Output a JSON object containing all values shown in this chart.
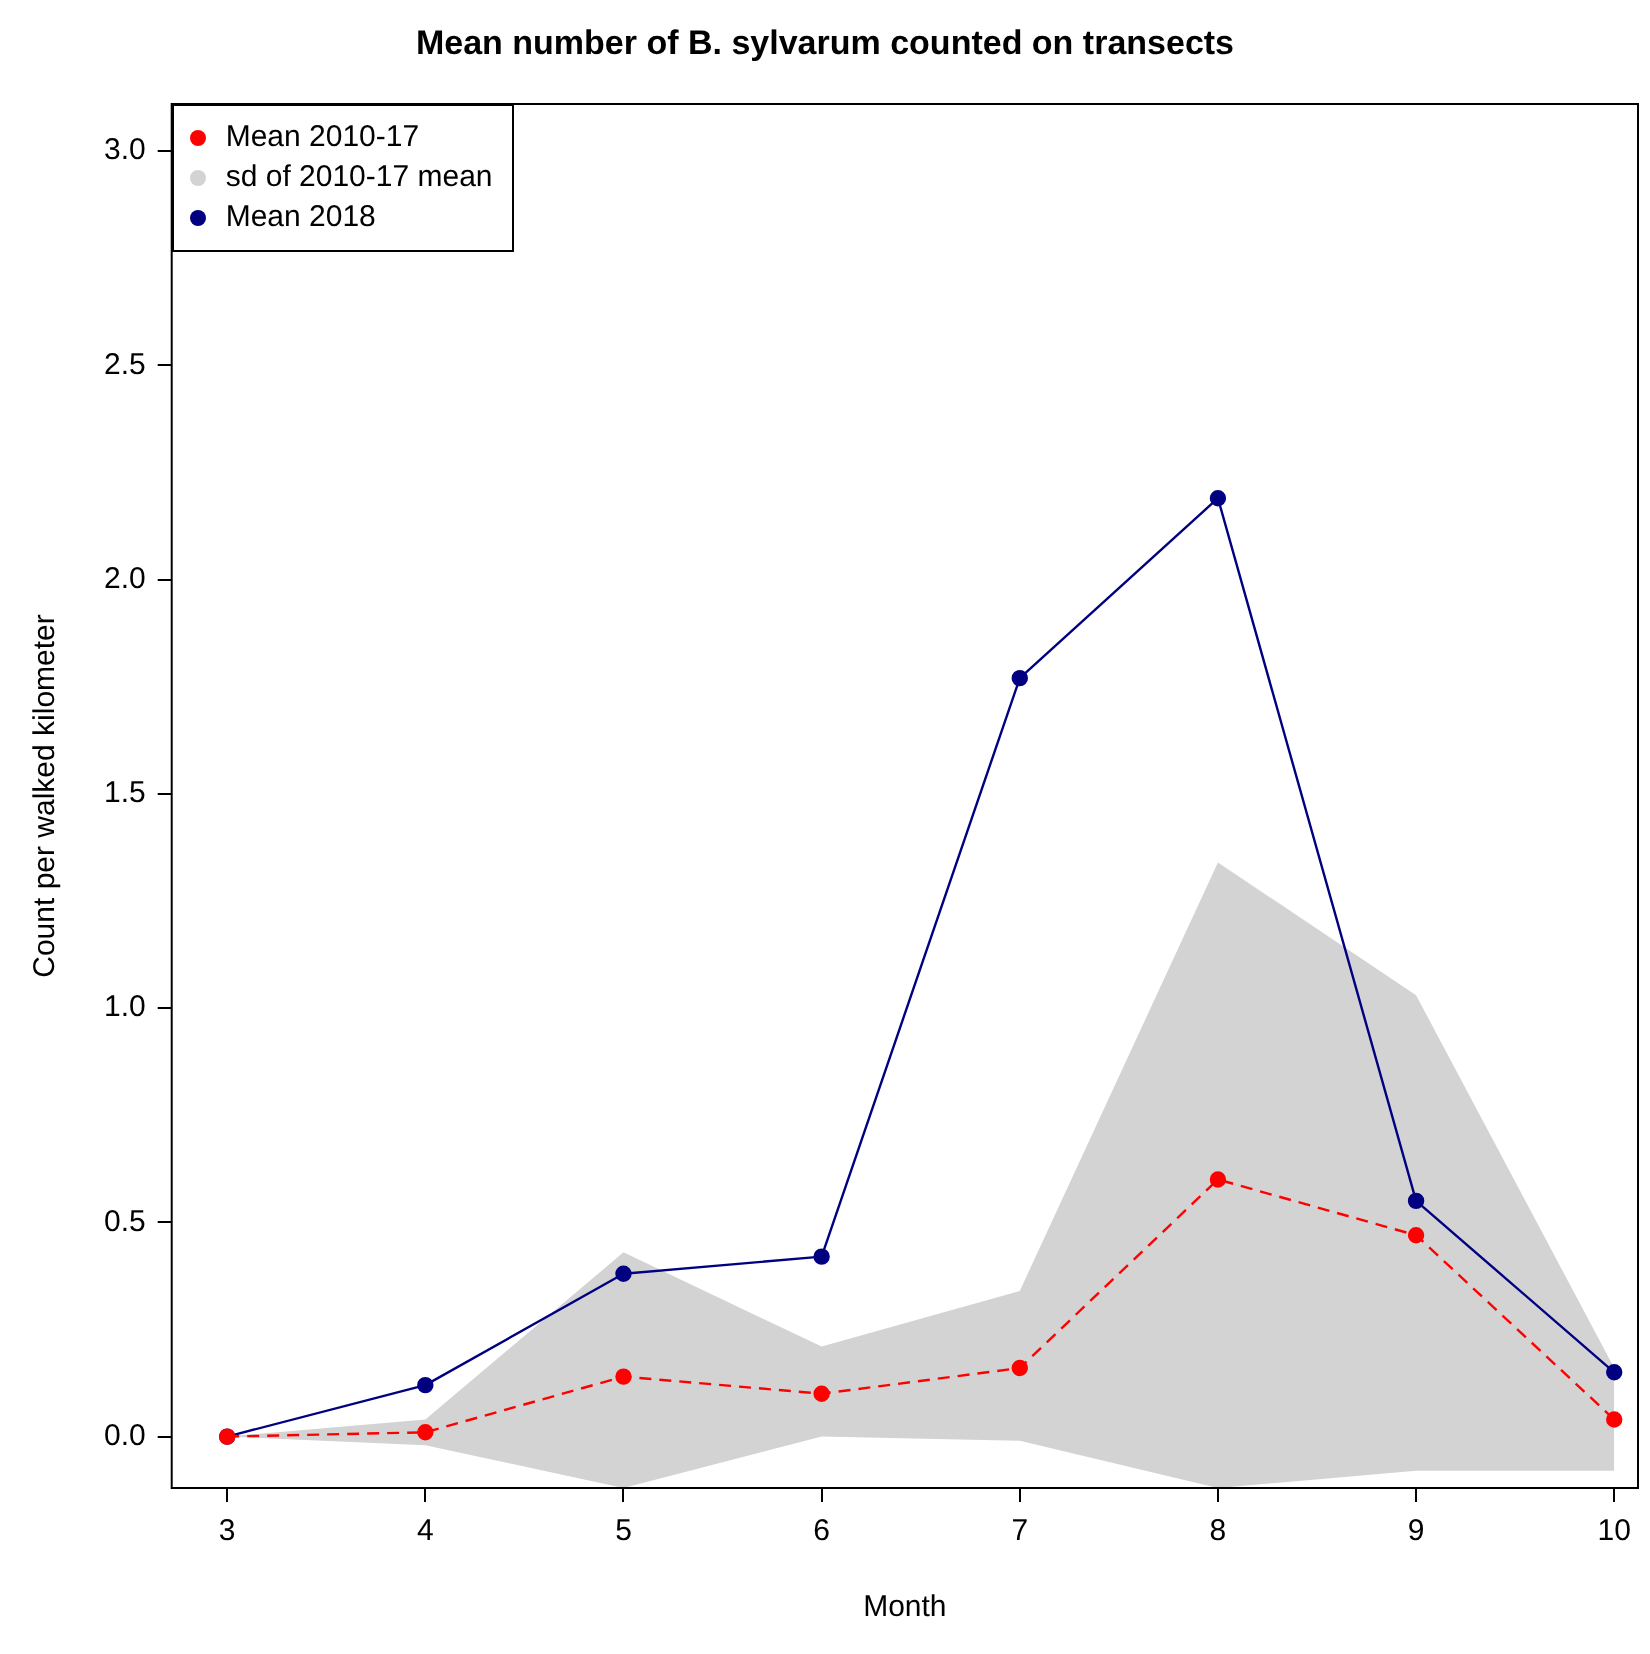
{
  "chart_data": {
    "type": "line",
    "title": "Mean number of B. sylvarum counted on transects",
    "xlabel": "Month",
    "ylabel": "Count per walked kilometer",
    "x": [
      3,
      4,
      5,
      6,
      7,
      8,
      9,
      10
    ],
    "xlim": [
      2.72,
      10.12
    ],
    "xticks": [
      3,
      4,
      5,
      6,
      7,
      8,
      9,
      10
    ],
    "ylim": [
      -0.12,
      3.11
    ],
    "yticks": [
      {
        "value": 0,
        "label": "0.0"
      },
      0.5,
      {
        "value": 1,
        "label": "1.0"
      },
      1.5,
      {
        "value": 2,
        "label": "2.0"
      },
      2.5,
      {
        "value": 3,
        "label": "3.0"
      }
    ],
    "grid": false,
    "legend": "top left",
    "marker": "circle",
    "series": [
      {
        "name": "Mean 2010-17",
        "color": "#ff0000",
        "line_style": "dashed",
        "values": [
          0,
          0.01,
          0.14,
          0.1,
          0.16,
          0.6,
          0.47,
          0.04
        ]
      },
      {
        "name": "sd of 2010-17 mean",
        "type": "line",
        "color": "#d3d3d3",
        "values": [
          null,
          null,
          null,
          null,
          null,
          null,
          null,
          null
        ],
        "upper": [
          0,
          0.04,
          0.43,
          0.21,
          0.34,
          1.34,
          1.03,
          0.16
        ],
        "lower": [
          0,
          -0.02,
          -0.12,
          0,
          -0.01,
          -0.12,
          -0.08,
          -0.08
        ]
      },
      {
        "name": "Mean 2018",
        "color": "#000080",
        "line_style": "solid",
        "values": [
          0,
          0.12,
          0.38,
          0.42,
          1.77,
          2.19,
          0.55,
          0.15
        ]
      }
    ]
  }
}
